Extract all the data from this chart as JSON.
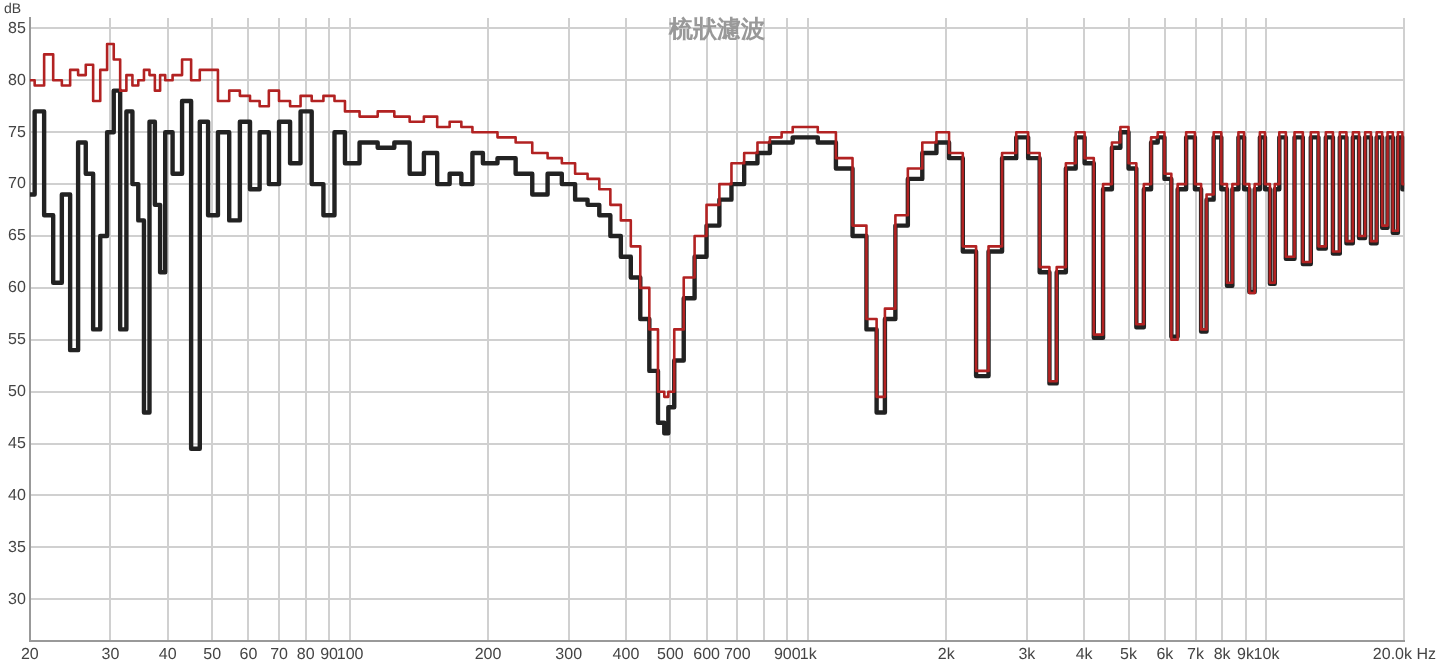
{
  "chart_data": {
    "type": "step",
    "title": "梳狀濾波",
    "ylabel": "dB",
    "log": "x",
    "grid": true,
    "xlim": [
      20,
      20000
    ],
    "ylim": [
      26,
      86
    ],
    "xticks": [
      20,
      30,
      40,
      50,
      60,
      70,
      80,
      90,
      100,
      200,
      300,
      400,
      500,
      600,
      700,
      {
        "value": 800,
        "label": null
      },
      900,
      {
        "value": 1000,
        "label": "1k"
      },
      {
        "value": 2000,
        "label": "2k"
      },
      {
        "value": 3000,
        "label": "3k"
      },
      {
        "value": 4000,
        "label": "4k"
      },
      {
        "value": 5000,
        "label": "5k"
      },
      {
        "value": 6000,
        "label": "6k"
      },
      {
        "value": 7000,
        "label": "7k"
      },
      {
        "value": 8000,
        "label": "8k"
      },
      {
        "value": 9000,
        "label": "9k"
      },
      {
        "value": 10000,
        "label": "10k"
      },
      {
        "value": 20000,
        "label": "20.0k Hz"
      }
    ],
    "yticks": [
      30,
      35,
      40,
      45,
      50,
      55,
      60,
      65,
      70,
      75,
      80,
      85
    ],
    "x": [
      20,
      21,
      22,
      23,
      24,
      25,
      26,
      27,
      28,
      29,
      30,
      31,
      32,
      33,
      34,
      35,
      36,
      37,
      38,
      39,
      40,
      42,
      44,
      46,
      48,
      50,
      53,
      56,
      59,
      62,
      65,
      68,
      72,
      76,
      80,
      85,
      90,
      95,
      100,
      110,
      120,
      130,
      140,
      150,
      160,
      170,
      180,
      190,
      200,
      220,
      240,
      260,
      280,
      300,
      320,
      340,
      360,
      380,
      400,
      420,
      440,
      460,
      480,
      490,
      500,
      520,
      550,
      580,
      620,
      660,
      700,
      750,
      800,
      850,
      900,
      950,
      1000,
      1100,
      1200,
      1300,
      1380,
      1440,
      1500,
      1600,
      1700,
      1850,
      1960,
      2100,
      2250,
      2400,
      2550,
      2750,
      2940,
      3100,
      3300,
      3420,
      3550,
      3750,
      3920,
      4100,
      4300,
      4500,
      4700,
      4900,
      5100,
      5300,
      5500,
      5700,
      5880,
      6100,
      6300,
      6500,
      6860,
      7100,
      7300,
      7500,
      7840,
      8100,
      8300,
      8550,
      8820,
      9050,
      9300,
      9550,
      9800,
      10050,
      10300,
      10550,
      10780,
      11270,
      11760,
      12250,
      12740,
      13230,
      13720,
      14210,
      14700,
      15190,
      15680,
      16170,
      16660,
      17150,
      17640,
      18130,
      18620,
      19110,
      19600,
      20000
    ],
    "series": [
      {
        "color": "#222222",
        "values": [
          69,
          77,
          67,
          60.5,
          69,
          54,
          74,
          71,
          56,
          65,
          75,
          79,
          56,
          77,
          70,
          66.5,
          48,
          76,
          68,
          61.5,
          75,
          71,
          78,
          44.5,
          76,
          67,
          75,
          66.5,
          76,
          69.5,
          75,
          70,
          76,
          72,
          77,
          70,
          67,
          75,
          72,
          74,
          73.5,
          74,
          71,
          73,
          70,
          71,
          70,
          73,
          72,
          72.5,
          71,
          69,
          71,
          70,
          68.5,
          68,
          67,
          65,
          63,
          61,
          57,
          52,
          47,
          46,
          48.5,
          53,
          59,
          63,
          66,
          68.5,
          70,
          72,
          73,
          74,
          74,
          74.5,
          74.5,
          74,
          71.5,
          65,
          56,
          48,
          57,
          66,
          70.5,
          73,
          74,
          72.5,
          63.5,
          51.5,
          63.5,
          72.5,
          74.5,
          72.5,
          61.5,
          50.8,
          61.5,
          71.5,
          74.5,
          72,
          55.2,
          69.5,
          73.5,
          75,
          71.5,
          56.2,
          69.5,
          74,
          74.5,
          70.5,
          55.3,
          69.5,
          74.5,
          69.5,
          55.8,
          68.5,
          74.5,
          69.5,
          60.2,
          69.5,
          74.5,
          69.5,
          59.6,
          69.5,
          74.5,
          69.5,
          60.4,
          69.5,
          74.5,
          62.8,
          74.5,
          62.3,
          74.5,
          63.8,
          74.5,
          63.3,
          74.5,
          64.3,
          74.5,
          64.8,
          74.5,
          64.3,
          74.5,
          65.8,
          74.5,
          65.3,
          74.5,
          69.5
        ]
      },
      {
        "color": "#b22222",
        "values": [
          80,
          79.5,
          82.5,
          80,
          79.5,
          81,
          80.5,
          81.5,
          78,
          81,
          83.5,
          82,
          79,
          80.5,
          79.5,
          80,
          81,
          80.5,
          79,
          80.5,
          80,
          80.5,
          82,
          80,
          81,
          81,
          78,
          79,
          78.5,
          78,
          77.5,
          79,
          78,
          77.5,
          78.5,
          78,
          78.5,
          78,
          77,
          76.5,
          77,
          76.5,
          76,
          76.5,
          75.5,
          76,
          75.5,
          75,
          75,
          74.5,
          74,
          73,
          72.5,
          72,
          71,
          70.5,
          69.5,
          68,
          66.5,
          64,
          60,
          56,
          50,
          49.5,
          50,
          56,
          61,
          65,
          68,
          70,
          72,
          73,
          74,
          74.5,
          75,
          75.5,
          75.5,
          75,
          72.5,
          66,
          57,
          49.5,
          58,
          67,
          71.5,
          74,
          75,
          73,
          64,
          52,
          64,
          73,
          75,
          73,
          62,
          51,
          62,
          72,
          75,
          72.5,
          55.5,
          70,
          74,
          75.5,
          72,
          56.5,
          70,
          74.5,
          75,
          71,
          55,
          70,
          75,
          70,
          56,
          69,
          75,
          70,
          60.5,
          70,
          75,
          70,
          59.5,
          70,
          75,
          70,
          60.5,
          70,
          75,
          63,
          75,
          62.5,
          75,
          64,
          75,
          63.5,
          75,
          64.5,
          75,
          65,
          75,
          64.5,
          75,
          66,
          75,
          65.5,
          75,
          70
        ]
      }
    ]
  }
}
